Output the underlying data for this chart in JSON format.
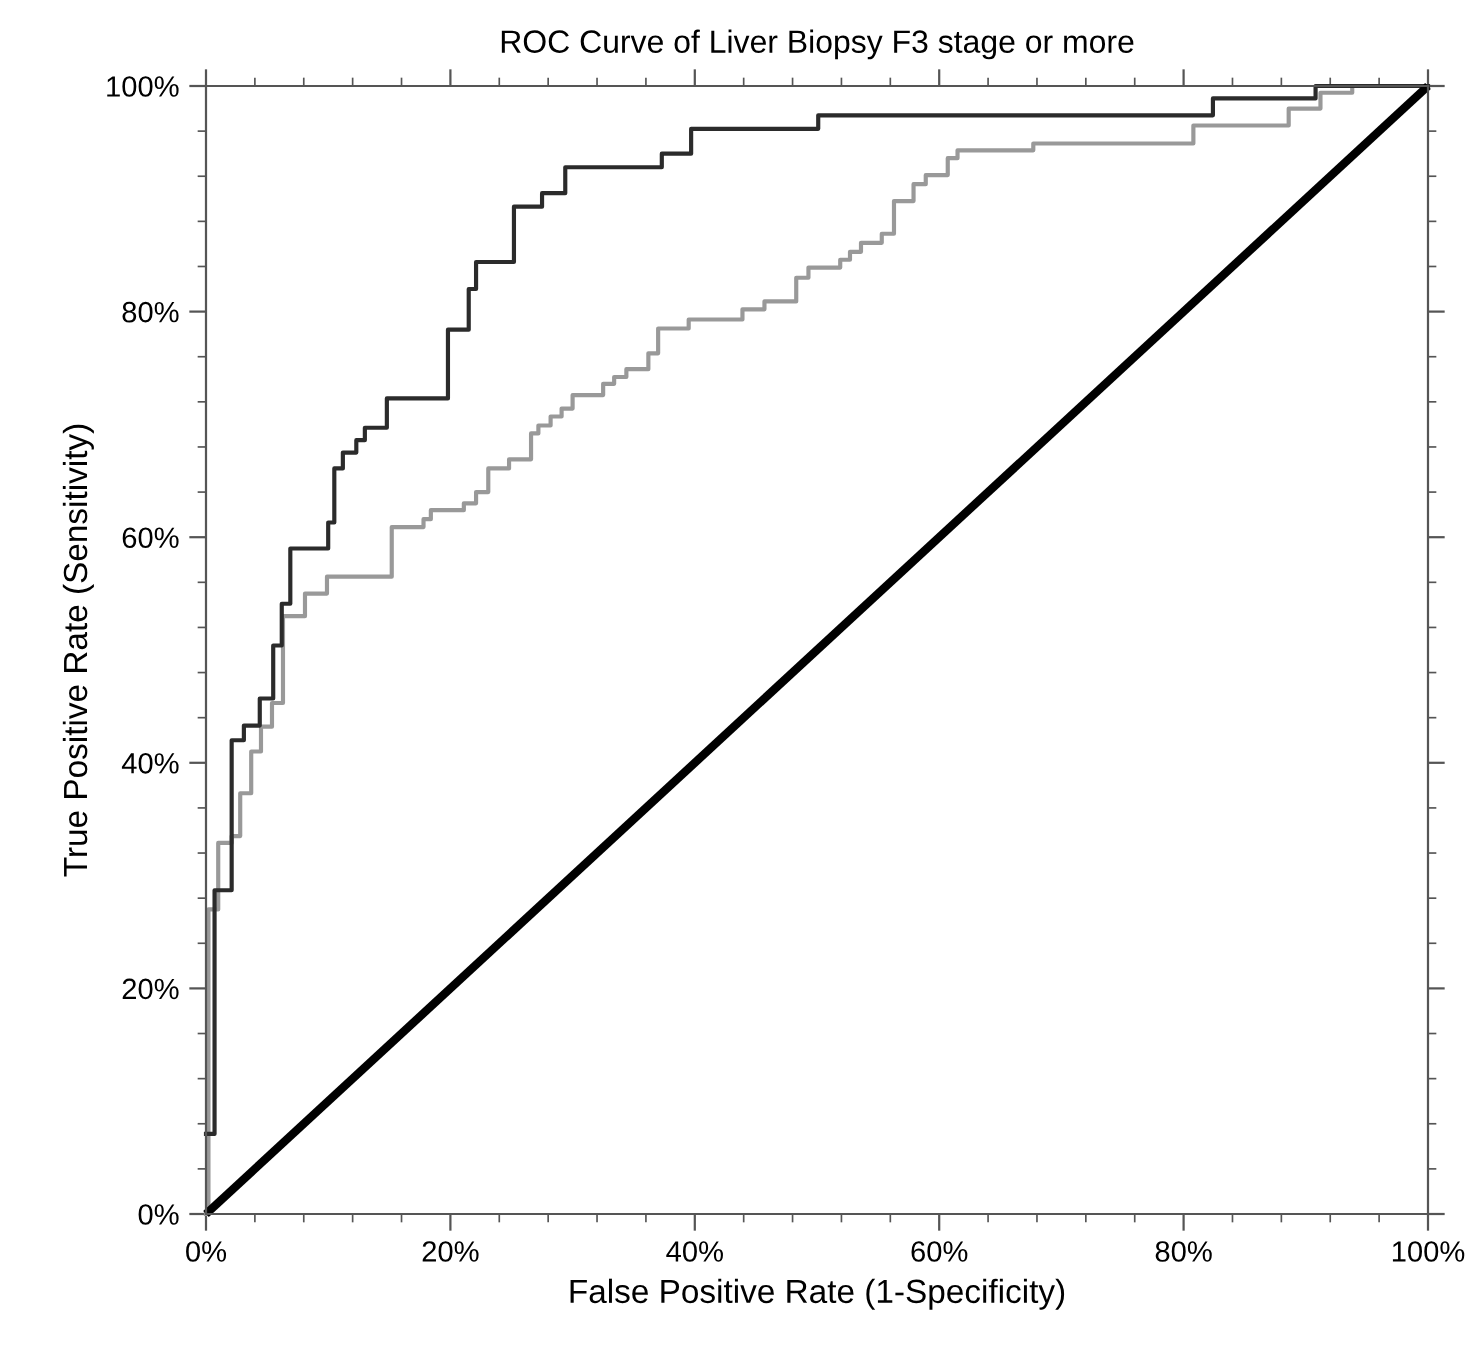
{
  "chart_data": {
    "type": "step",
    "title": "ROC Curve of Liver Biopsy F3 stage or more",
    "xlabel": "False Positive Rate (1-Specificity)",
    "ylabel": "True Positive Rate (Sensitivity)",
    "xlim": [
      0,
      100
    ],
    "ylim": [
      0,
      100
    ],
    "xticks": [
      {
        "value": 0,
        "label": "0%"
      },
      {
        "value": 4,
        "label": null
      },
      {
        "value": 8,
        "label": null
      },
      {
        "value": 12,
        "label": null
      },
      {
        "value": 16,
        "label": null
      },
      {
        "value": 20,
        "label": "20%"
      },
      {
        "value": 24,
        "label": null
      },
      {
        "value": 28,
        "label": null
      },
      {
        "value": 32,
        "label": null
      },
      {
        "value": 36,
        "label": null
      },
      {
        "value": 40,
        "label": "40%"
      },
      {
        "value": 44,
        "label": null
      },
      {
        "value": 48,
        "label": null
      },
      {
        "value": 52,
        "label": null
      },
      {
        "value": 56,
        "label": null
      },
      {
        "value": 60,
        "label": "60%"
      },
      {
        "value": 64,
        "label": null
      },
      {
        "value": 68,
        "label": null
      },
      {
        "value": 72,
        "label": null
      },
      {
        "value": 76,
        "label": null
      },
      {
        "value": 80,
        "label": "80%"
      },
      {
        "value": 84,
        "label": null
      },
      {
        "value": 88,
        "label": null
      },
      {
        "value": 92,
        "label": null
      },
      {
        "value": 96,
        "label": null
      },
      {
        "value": 100,
        "label": "100%"
      }
    ],
    "yticks": [
      {
        "value": 0,
        "label": "0%"
      },
      {
        "value": 4,
        "label": null
      },
      {
        "value": 8,
        "label": null
      },
      {
        "value": 12,
        "label": null
      },
      {
        "value": 16,
        "label": null
      },
      {
        "value": 20,
        "label": "20%"
      },
      {
        "value": 24,
        "label": null
      },
      {
        "value": 28,
        "label": null
      },
      {
        "value": 32,
        "label": null
      },
      {
        "value": 36,
        "label": null
      },
      {
        "value": 40,
        "label": "40%"
      },
      {
        "value": 44,
        "label": null
      },
      {
        "value": 48,
        "label": null
      },
      {
        "value": 52,
        "label": null
      },
      {
        "value": 56,
        "label": null
      },
      {
        "value": 60,
        "label": "60%"
      },
      {
        "value": 64,
        "label": null
      },
      {
        "value": 68,
        "label": null
      },
      {
        "value": 72,
        "label": null
      },
      {
        "value": 76,
        "label": null
      },
      {
        "value": 80,
        "label": "80%"
      },
      {
        "value": 84,
        "label": null
      },
      {
        "value": 88,
        "label": null
      },
      {
        "value": 92,
        "label": null
      },
      {
        "value": 96,
        "label": null
      },
      {
        "value": 100,
        "label": "100%"
      }
    ],
    "grid": false,
    "legend": false,
    "series": [
      {
        "color": "#999999",
        "x": [
          0,
          0.2,
          1.0,
          2.1,
          2.8,
          3.7,
          4.5,
          5.4,
          6.3,
          8.1,
          9.9,
          15.2,
          17.8,
          18.4,
          21.1,
          22.1,
          23.1,
          24.8,
          26.6,
          27.2,
          28.2,
          29.1,
          30,
          32.5,
          33.4,
          34.4,
          36.2,
          37.0,
          39.5,
          43.9,
          45.7,
          48.3,
          49.3,
          51.9,
          52.7,
          53.6,
          55.3,
          56.3,
          57.9,
          58.9,
          60.7,
          61.5,
          67.7,
          80.8,
          88.6,
          91.2,
          93.8,
          100
        ],
        "values": [
          0,
          27,
          32.9,
          33.5,
          37.3,
          41,
          43.2,
          45.3,
          53,
          55,
          56.5,
          60.9,
          61.6,
          62.4,
          63,
          64,
          66.1,
          66.9,
          69.2,
          69.9,
          70.7,
          71.4,
          72.6,
          73.6,
          74.2,
          74.9,
          76.3,
          78.5,
          79.3,
          80.2,
          80.9,
          83.0,
          83.9,
          84.6,
          85.3,
          86.1,
          86.9,
          89.8,
          91.3,
          92.1,
          93.6,
          94.3,
          94.9,
          96.5,
          98.0,
          99.4,
          100,
          100
        ]
      },
      {
        "color": "#2b2b2b",
        "x": [
          0,
          0.7,
          2.1,
          3.1,
          4.4,
          5.5,
          6.2,
          6.9,
          10.0,
          10.5,
          11.2,
          12.3,
          13.0,
          14.8,
          19.8,
          21.5,
          22.1,
          25.2,
          27.5,
          29.4,
          37.3,
          39.7,
          50.1,
          82.4,
          90.8,
          100
        ],
        "values": [
          7.1,
          28.7,
          42.0,
          43.3,
          45.7,
          50.4,
          54.1,
          59.0,
          61.3,
          66.1,
          67.5,
          68.6,
          69.7,
          72.3,
          78.4,
          82.0,
          84.4,
          89.3,
          90.5,
          92.8,
          94.0,
          96.2,
          97.4,
          98.9,
          100,
          100
        ]
      },
      {
        "type": "line",
        "color": "#000000",
        "x": [
          0,
          100
        ],
        "values": [
          0,
          100
        ]
      }
    ]
  }
}
